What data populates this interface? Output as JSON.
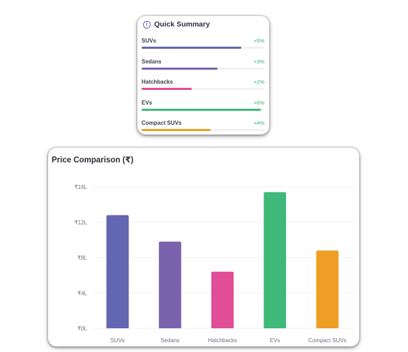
{
  "summary": {
    "title": "Quick Summary",
    "icon": "info-icon",
    "items": [
      {
        "label": "SUVs",
        "change": "+5%",
        "level": 0.81,
        "color": "#6366b0"
      },
      {
        "label": "Sedans",
        "change": "+3%",
        "level": 0.62,
        "color": "#7b62ad"
      },
      {
        "label": "Hatchbacks",
        "change": "+2%",
        "level": 0.41,
        "color": "#e14d97"
      },
      {
        "label": "EVs",
        "change": "+6%",
        "level": 0.97,
        "color": "#3fb87a"
      },
      {
        "label": "Compact SUVs",
        "change": "+4%",
        "level": 0.56,
        "color": "#ee9e25"
      }
    ],
    "change_color": "#2fb069"
  },
  "chart": {
    "title": "Price Comparison (₹)"
  },
  "chart_data": {
    "type": "bar",
    "title": "Price Comparison (₹)",
    "categories": [
      "SUVs",
      "Sedans",
      "Hatchbacks",
      "EVs",
      "Compact SUVs"
    ],
    "values": [
      12.8,
      9.8,
      6.4,
      15.4,
      8.8
    ],
    "colors": [
      "#6366b0",
      "#7b62ad",
      "#e14d97",
      "#3fb87a",
      "#ee9e25"
    ],
    "unit": "lakh ₹",
    "ylim": [
      0,
      16
    ],
    "yticks": [
      0,
      4,
      8,
      12,
      16
    ],
    "ytick_labels": [
      "₹0L",
      "₹4L",
      "₹8L",
      "₹12L",
      "₹16L"
    ],
    "xlabel": "",
    "ylabel": "",
    "grid": true,
    "legend": "none"
  }
}
